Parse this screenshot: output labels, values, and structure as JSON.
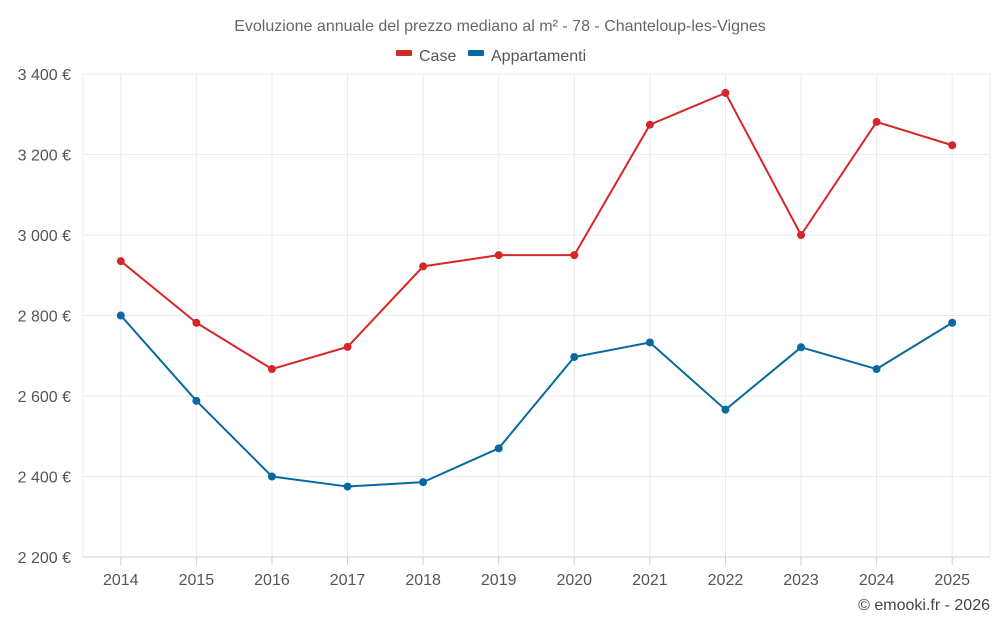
{
  "chart_data": {
    "type": "line",
    "title": "Evoluzione annuale del prezzo mediano al m² - 78 - Chanteloup-les-Vignes",
    "categories": [
      "2014",
      "2015",
      "2016",
      "2017",
      "2018",
      "2019",
      "2020",
      "2021",
      "2022",
      "2023",
      "2024",
      "2025"
    ],
    "series": [
      {
        "name": "Case",
        "color": "#d62728",
        "values": [
          2935,
          2782,
          2667,
          2722,
          2922,
          2950,
          2950,
          3274,
          3353,
          3000,
          3281,
          3223
        ]
      },
      {
        "name": "Appartamenti",
        "color": "#0868a0",
        "values": [
          2800,
          2588,
          2400,
          2375,
          2386,
          2470,
          2697,
          2733,
          2566,
          2721,
          2667,
          2782
        ]
      }
    ],
    "y_ticks": [
      {
        "value": 2200,
        "label": "2 200 €"
      },
      {
        "value": 2400,
        "label": "2 400 €"
      },
      {
        "value": 2600,
        "label": "2 600 €"
      },
      {
        "value": 2800,
        "label": "2 800 €"
      },
      {
        "value": 3000,
        "label": "3 000 €"
      },
      {
        "value": 3200,
        "label": "3 200 €"
      },
      {
        "value": 3400,
        "label": "3 400 €"
      }
    ],
    "ylim": [
      2200,
      3400
    ],
    "xlabel": "",
    "ylabel": "",
    "grid": true,
    "legend_position": "top-center"
  },
  "credit": "© emooki.fr - 2026"
}
